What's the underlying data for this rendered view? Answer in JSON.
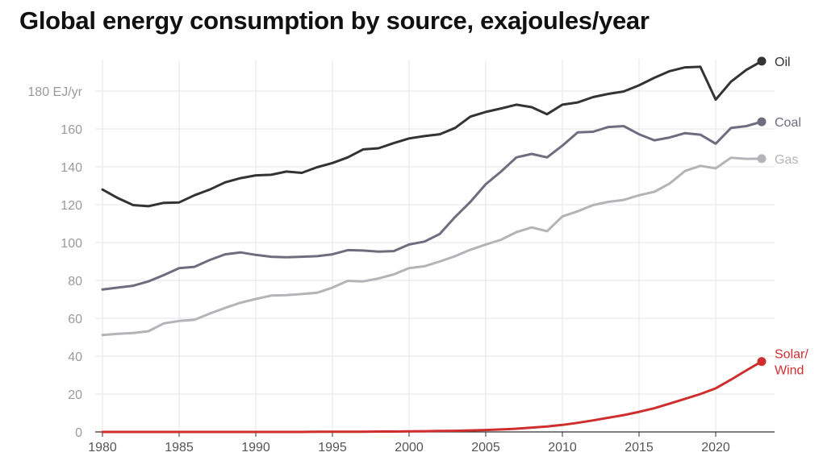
{
  "title": "Global energy consumption by source, exajoules/year",
  "chart_data": {
    "type": "line",
    "title": "Global energy consumption by source, exajoules/year",
    "xlabel": "",
    "ylabel": "",
    "xlim": [
      1980,
      2023
    ],
    "ylim": [
      0,
      200
    ],
    "x_ticks": [
      "1980",
      "1985",
      "1990",
      "1995",
      "2000",
      "2005",
      "2010",
      "2015",
      "2020"
    ],
    "y_ticks": [
      "0",
      "20",
      "40",
      "60",
      "80",
      "100",
      "120",
      "140",
      "160",
      "180 EJ/yr"
    ],
    "grid": true,
    "legend": "direct labels at right end of lines",
    "x": [
      1980,
      1981,
      1982,
      1983,
      1984,
      1985,
      1986,
      1987,
      1988,
      1989,
      1990,
      1991,
      1992,
      1993,
      1994,
      1995,
      1996,
      1997,
      1998,
      1999,
      2000,
      2001,
      2002,
      2003,
      2004,
      2005,
      2006,
      2007,
      2008,
      2009,
      2010,
      2011,
      2012,
      2013,
      2014,
      2015,
      2016,
      2017,
      2018,
      2019,
      2020,
      2021,
      2022,
      2023
    ],
    "series": [
      {
        "name": "Oil",
        "label_lines": [
          "Oil"
        ],
        "color": "#333333",
        "values": [
          128,
          123.5,
          119.8,
          119.2,
          121,
          121.2,
          125,
          128,
          131.8,
          134,
          135.5,
          135.8,
          137.5,
          136.8,
          139.8,
          142,
          145,
          149.2,
          149.8,
          152.5,
          155,
          156.2,
          157.2,
          160.5,
          166.5,
          169,
          170.8,
          172.8,
          171.5,
          167.8,
          172.8,
          174,
          176.8,
          178.5,
          179.8,
          183,
          187,
          190.5,
          192.5,
          192.8,
          175.5,
          185,
          191.2,
          195.8
        ]
      },
      {
        "name": "Coal",
        "label_lines": [
          "Coal"
        ],
        "color": "#6e6d7e",
        "values": [
          75.2,
          76.2,
          77.2,
          79.5,
          82.8,
          86.5,
          87.2,
          90.8,
          93.8,
          94.8,
          93.5,
          92.5,
          92.2,
          92.5,
          92.8,
          93.8,
          96,
          95.8,
          95.2,
          95.5,
          99,
          100.5,
          104.5,
          113.5,
          121.5,
          130.8,
          137.5,
          145,
          146.8,
          145,
          151.2,
          158.2,
          158.5,
          161,
          161.5,
          157.2,
          154,
          155.5,
          157.8,
          157,
          152.2,
          160.5,
          161.5,
          163.8
        ]
      },
      {
        "name": "Gas",
        "label_lines": [
          "Gas"
        ],
        "color": "#b3b3b8",
        "values": [
          51.2,
          51.8,
          52.2,
          53.2,
          57.3,
          58.6,
          59.2,
          62.5,
          65.5,
          68.2,
          70.2,
          72,
          72.2,
          72.8,
          73.5,
          76.2,
          79.8,
          79.5,
          81,
          83.2,
          86.5,
          87.5,
          90,
          92.8,
          96.2,
          99,
          101.5,
          105.5,
          108,
          106,
          113.8,
          116.5,
          119.8,
          121.5,
          122.5,
          125,
          126.8,
          131.2,
          137.8,
          140.5,
          139.2,
          144.8,
          144.2,
          144.3
        ]
      },
      {
        "name": "Solar/Wind",
        "label_lines": [
          "Solar/",
          "Wind"
        ],
        "color": "#cf2e2e",
        "values": [
          0,
          0,
          0,
          0,
          0,
          0,
          0,
          0,
          0,
          0,
          0,
          0,
          0,
          0,
          0.1,
          0.1,
          0.1,
          0.1,
          0.2,
          0.2,
          0.3,
          0.4,
          0.5,
          0.6,
          0.8,
          1.0,
          1.3,
          1.7,
          2.3,
          2.9,
          3.7,
          4.8,
          6.1,
          7.5,
          8.9,
          10.6,
          12.5,
          15.0,
          17.5,
          20.0,
          23.0,
          27.6,
          32.5,
          37.2
        ]
      }
    ]
  }
}
